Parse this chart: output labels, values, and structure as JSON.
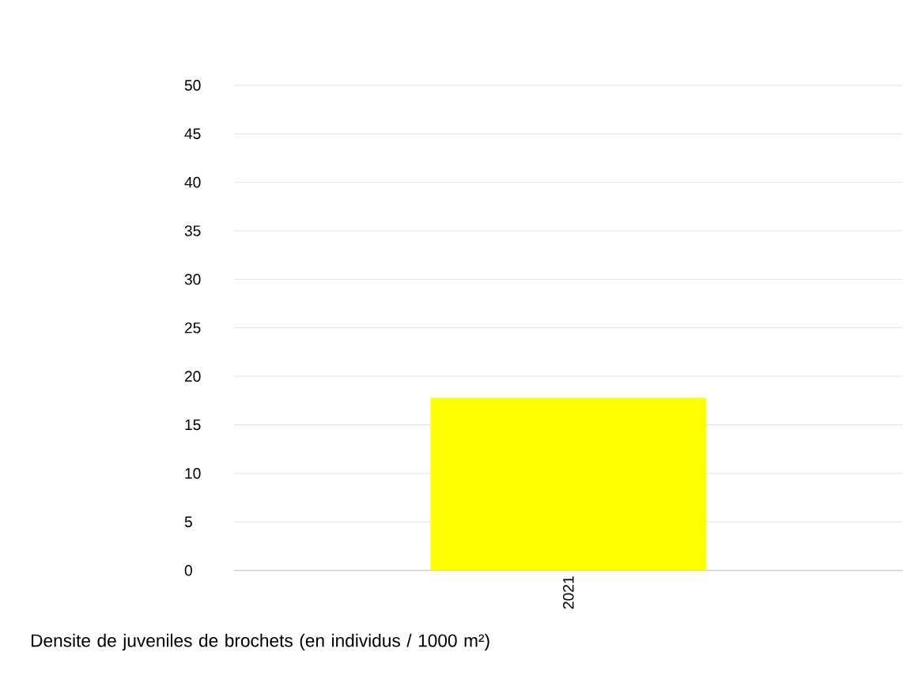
{
  "chart_data": {
    "type": "bar",
    "categories": [
      "2021"
    ],
    "values": [
      17.8
    ],
    "color": "#ffff00",
    "ylim": [
      0,
      50
    ],
    "yticks": [
      0,
      5,
      10,
      15,
      20,
      25,
      30,
      35,
      40,
      45,
      50
    ],
    "grid": "y",
    "annotations": [
      "Densite de juveniles de brochets (en individus / 1000 m²)"
    ]
  }
}
